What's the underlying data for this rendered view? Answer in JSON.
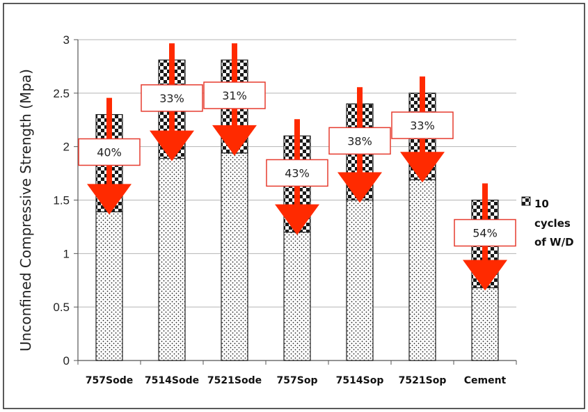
{
  "chart_data": {
    "type": "bar",
    "ylabel": "Unconfined Compressive Strength (Mpa)",
    "xlabel": "",
    "ylim": [
      0,
      3
    ],
    "yticks": [
      "0",
      "0.5",
      "1",
      "1.5",
      "2",
      "2.5",
      "3"
    ],
    "grid": true,
    "categories": [
      "757Sode",
      "7514Sode",
      "7521Sode",
      "757Sop",
      "7514Sop",
      "7521Sop",
      "Cement"
    ],
    "series": [
      {
        "key": "after",
        "values": [
          1.39,
          1.89,
          1.94,
          1.2,
          1.5,
          1.69,
          0.68
        ]
      },
      {
        "key": "initial",
        "values": [
          2.3,
          2.81,
          2.81,
          2.1,
          2.4,
          2.5,
          1.5
        ]
      }
    ],
    "reduction_labels": [
      "40%",
      "33%",
      "31%",
      "43%",
      "38%",
      "33%",
      "54%"
    ],
    "legend": {
      "position": "right",
      "lines": [
        "10",
        "cycles",
        "of W/D"
      ]
    },
    "colors": {
      "arrow": "#ff2a00",
      "label_border": "#e63b2e",
      "bar_outline": "#222222",
      "grid": "#b5b5b5"
    }
  }
}
